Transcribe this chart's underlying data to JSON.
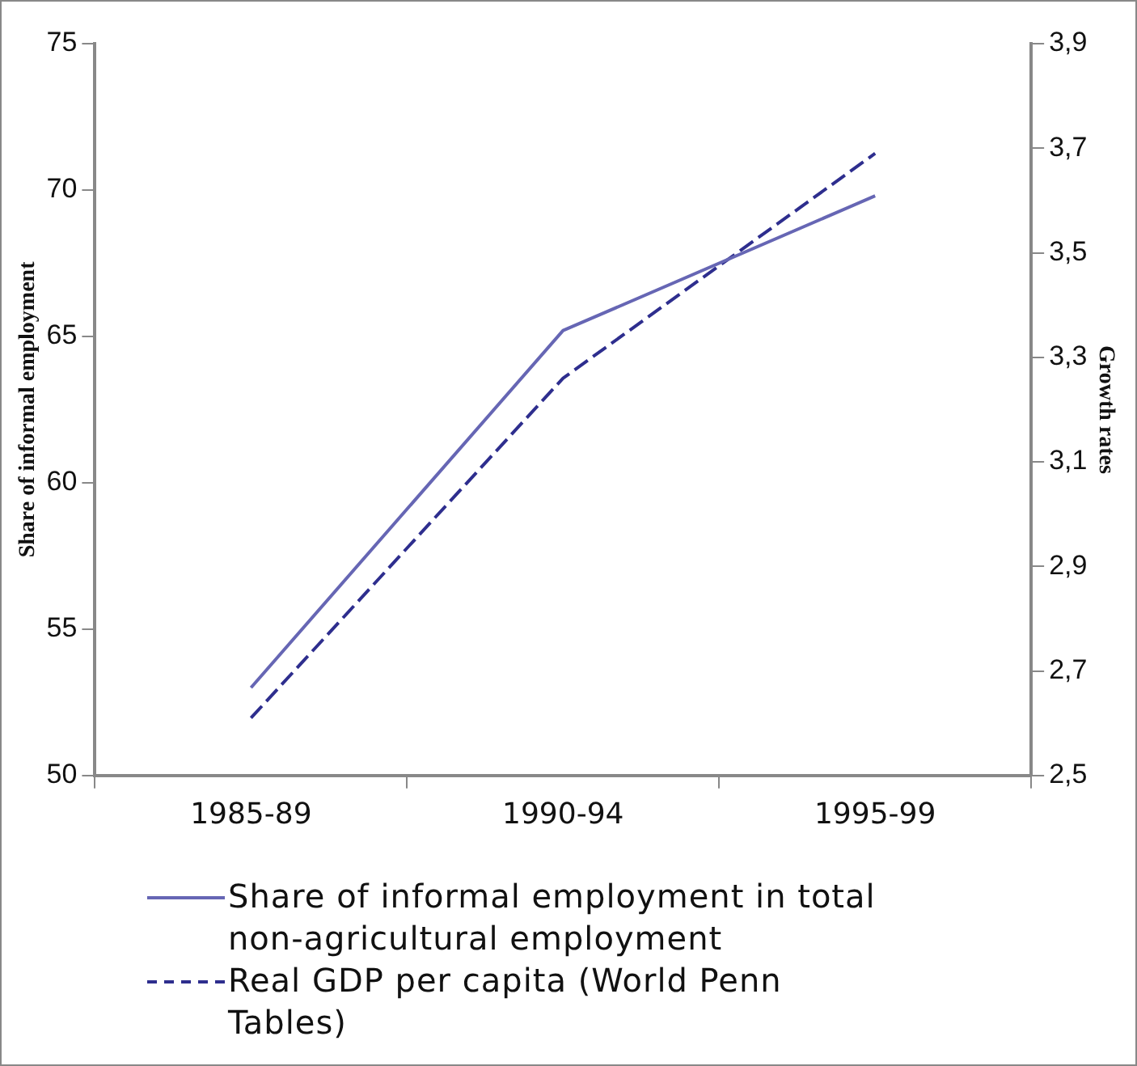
{
  "chart_data": {
    "type": "line",
    "ylabel": "Share of informal employment",
    "y2label": "Growth rates",
    "categories": [
      "1985-89",
      "1990-94",
      "1995-99"
    ],
    "series": [
      {
        "name": "Share of informal employment in total non-agricultural employment",
        "color": "#6666b4",
        "values": [
          53.0,
          65.2,
          69.8
        ],
        "line_style": "solid"
      },
      {
        "name": "Real GDP per capita (World Penn Tables)",
        "color": "#2e2e8e",
        "values": [
          2.61,
          3.26,
          3.69
        ],
        "axis": "y2",
        "line_style": "dashed"
      }
    ],
    "ylim": [
      50,
      75
    ],
    "yticks": [
      50,
      55,
      60,
      65,
      70,
      75
    ],
    "y2lim": [
      2.5,
      3.9
    ],
    "y2ticks": [
      {
        "value": 2.5,
        "label": "2,5"
      },
      {
        "value": 2.7,
        "label": "2,7"
      },
      {
        "value": 2.9,
        "label": "2,9"
      },
      {
        "value": 3.1,
        "label": "3,1"
      },
      {
        "value": 3.3,
        "label": "3,3"
      },
      {
        "value": 3.5,
        "label": "3,5"
      },
      {
        "value": 3.7,
        "label": "3,7"
      },
      {
        "value": 3.9,
        "label": "3,9"
      }
    ],
    "grid": false,
    "legend": "bottom",
    "marker": "none"
  }
}
